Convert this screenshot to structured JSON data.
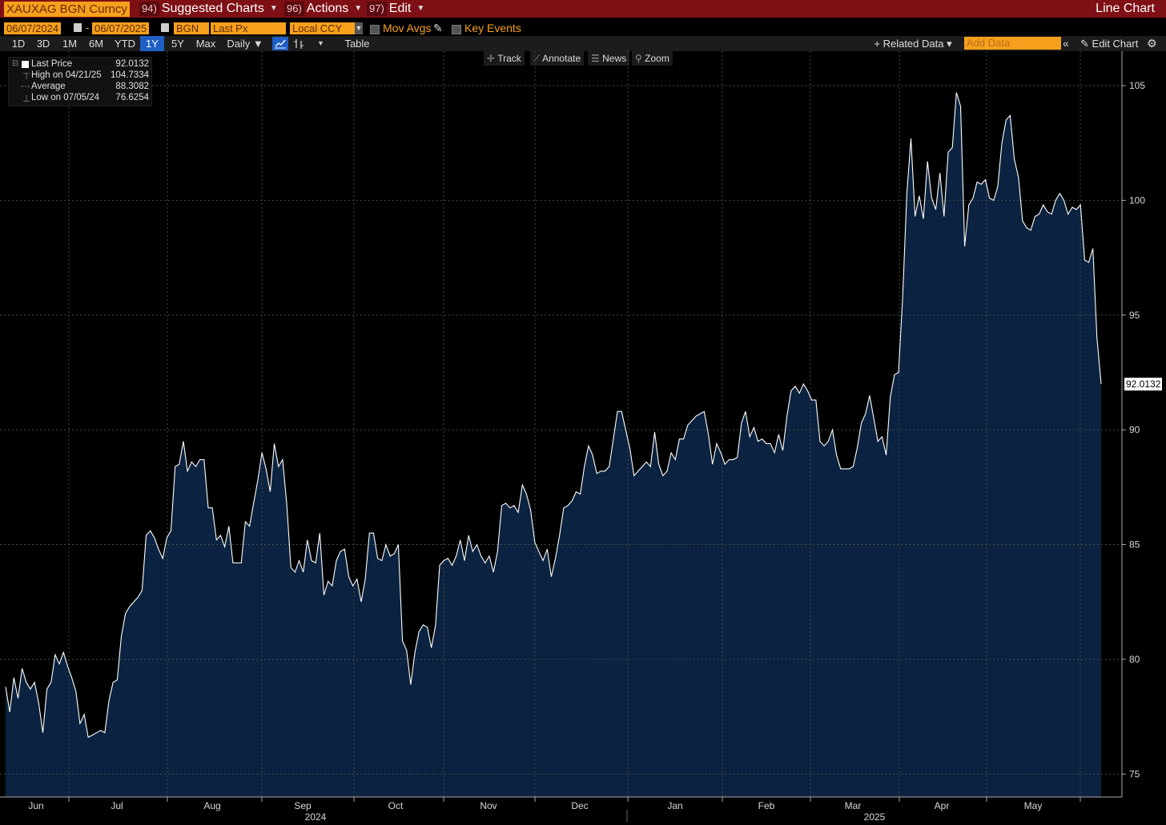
{
  "header": {
    "ticker": "XAUXAG BGN Curncy",
    "menus": [
      {
        "num": "94)",
        "label": "Suggested Charts"
      },
      {
        "num": "96)",
        "label": "Actions"
      },
      {
        "num": "97)",
        "label": "Edit"
      }
    ],
    "chart_mode": "Line Chart"
  },
  "options": {
    "start_date": "06/07/2024",
    "end_date": "06/07/2025",
    "source": "BGN",
    "field": "Last Px",
    "currency": "Local CCY",
    "mov_avgs": "Mov Avgs",
    "key_events": "Key Events"
  },
  "toolbar": {
    "ranges": [
      "1D",
      "3D",
      "1M",
      "6M",
      "YTD",
      "1Y",
      "5Y",
      "Max"
    ],
    "active_range": "1Y",
    "frequency": "Daily ▼",
    "table": "Table",
    "related_data": "+ Related Data ▾",
    "add_data_placeholder": "Add Data",
    "edit_chart": "Edit Chart"
  },
  "floating_tools": {
    "track": "Track",
    "annotate": "Annotate",
    "news": "News",
    "zoom": "Zoom"
  },
  "legend": {
    "last_label": "Last Price",
    "last_value": "92.0132",
    "high_label": "High on 04/21/25",
    "high_value": "104.7334",
    "avg_label": "Average",
    "avg_value": "88.3082",
    "low_label": "Low on 07/05/24",
    "low_value": "76.6254"
  },
  "colors": {
    "line": "#ffffff",
    "fill": "#0b2340",
    "grid": "#4a4a4a",
    "accent": "#f7a01d",
    "header": "#7e0f14"
  },
  "chart_data": {
    "type": "area",
    "ylim": [
      74,
      106.5
    ],
    "y_ticks": [
      75,
      80,
      85,
      90,
      95,
      100,
      105
    ],
    "x_month_labels": [
      "Jun",
      "Jul",
      "Aug",
      "Sep",
      "Oct",
      "Nov",
      "Dec",
      "Jan",
      "Feb",
      "Mar",
      "Apr",
      "May"
    ],
    "x_year_labels": [
      "2024",
      "2025"
    ],
    "last_value_label": "92.0132",
    "series": [
      {
        "values": [
          78.8,
          77.7,
          79.2,
          78.3,
          79.6,
          79.0,
          78.7,
          79.0,
          78.1,
          76.8,
          78.7,
          79.0,
          80.2,
          79.8,
          80.3,
          79.7,
          79.2,
          78.6,
          77.2,
          77.6,
          76.6,
          76.7,
          76.8,
          76.9,
          76.8,
          78.2,
          79.0,
          79.1,
          81.0,
          82.0,
          82.3,
          82.5,
          82.7,
          83.0,
          85.4,
          85.6,
          85.3,
          84.8,
          84.4,
          85.3,
          85.6,
          88.4,
          88.5,
          89.5,
          88.2,
          88.6,
          88.4,
          88.7,
          88.7,
          86.6,
          86.6,
          85.2,
          85.4,
          84.9,
          85.8,
          84.2,
          84.2,
          84.2,
          86.0,
          85.8,
          86.8,
          87.8,
          89.0,
          88.3,
          87.3,
          89.4,
          88.4,
          88.7,
          86.8,
          84.0,
          83.8,
          84.3,
          83.8,
          85.2,
          84.3,
          84.2,
          85.5,
          82.8,
          83.4,
          83.2,
          84.3,
          84.7,
          84.8,
          83.6,
          83.2,
          83.5,
          82.5,
          83.5,
          85.5,
          85.5,
          84.4,
          84.3,
          85.0,
          84.5,
          84.6,
          85.0,
          80.8,
          80.4,
          78.9,
          80.3,
          81.2,
          81.5,
          81.4,
          80.5,
          81.5,
          84.1,
          84.3,
          84.4,
          84.1,
          84.5,
          85.2,
          84.3,
          85.4,
          84.7,
          85.0,
          84.5,
          84.2,
          84.5,
          83.8,
          84.7,
          86.7,
          86.8,
          86.6,
          86.7,
          86.4,
          87.6,
          87.2,
          86.5,
          85.1,
          84.7,
          84.3,
          84.8,
          83.6,
          84.4,
          85.4,
          86.6,
          86.7,
          86.9,
          87.3,
          87.2,
          88.4,
          89.3,
          88.9,
          88.1,
          88.2,
          88.2,
          88.4,
          89.6,
          90.8,
          90.8,
          90.0,
          89.2,
          88.0,
          88.2,
          88.4,
          88.6,
          88.4,
          89.9,
          88.5,
          88.0,
          88.2,
          89.0,
          88.7,
          89.6,
          89.6,
          90.2,
          90.4,
          90.6,
          90.7,
          90.8,
          89.8,
          88.5,
          89.4,
          89.0,
          88.5,
          88.7,
          88.7,
          88.8,
          90.3,
          90.8,
          89.7,
          90.1,
          89.5,
          89.6,
          89.4,
          89.4,
          89.0,
          89.8,
          89.1,
          90.6,
          91.7,
          91.9,
          91.6,
          92.0,
          91.7,
          91.3,
          91.3,
          89.5,
          89.3,
          89.5,
          90.0,
          88.9,
          88.3,
          88.3,
          88.3,
          88.4,
          89.2,
          90.3,
          90.7,
          91.5,
          90.5,
          89.5,
          89.7,
          88.9,
          91.4,
          92.4,
          92.5,
          95.8,
          100.3,
          102.7,
          99.3,
          100.2,
          99.2,
          101.7,
          100.1,
          99.6,
          101.2,
          99.3,
          102.1,
          102.3,
          104.7,
          104.1,
          98.0,
          99.8,
          100.1,
          100.8,
          100.7,
          100.9,
          100.1,
          100.0,
          100.6,
          102.5,
          103.5,
          103.7,
          101.8,
          101.0,
          99.1,
          98.8,
          98.7,
          99.3,
          99.4,
          99.8,
          99.5,
          99.4,
          100.0,
          100.3,
          100.0,
          99.4,
          99.7,
          99.6,
          99.8,
          97.4,
          97.3,
          97.9,
          94.0,
          92.0
        ]
      }
    ]
  }
}
